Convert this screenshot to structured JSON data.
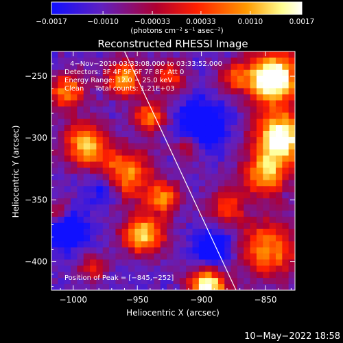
{
  "chart_data": {
    "type": "heatmap",
    "title": "Reconstructed RHESSI Image",
    "xlabel": "Heliocentric X (arcsec)",
    "ylabel": "Heliocentric Y (arcsec)",
    "xlim": [
      -1017,
      -827
    ],
    "ylim": [
      -423,
      -230
    ],
    "xticks": [
      -1000,
      -950,
      -900,
      -850
    ],
    "yticks": [
      -400,
      -350,
      -300,
      -250
    ],
    "xtick_labels": [
      "−1000",
      "−950",
      "−900",
      "−850"
    ],
    "ytick_labels": [
      "−400",
      "−350",
      "−300",
      "−250"
    ],
    "colorbar": {
      "min": -0.0017,
      "max": 0.0017,
      "ticks": [
        -0.0017,
        -0.001,
        -0.00033,
        0.00033,
        0.001,
        0.0017
      ],
      "tick_labels": [
        "−0.0017",
        "−0.0010",
        "−0.00033",
        "0.00033",
        "0.0010",
        "0.0017"
      ],
      "unit_label": "(photons cm⁻² s⁻¹ asec⁻²)",
      "colors": [
        "#1010ff",
        "#6020c0",
        "#b00030",
        "#ff2000",
        "#ff9a00",
        "#ffff90",
        "#ffffff"
      ]
    },
    "annotations": [
      "4−Nov−2010 03:33:08.000 to 03:33:52.000",
      "Detectors: 3F 4F 5F 6F 7F 8F, Att 0",
      "Energy Range: 12.0 − 25.0 keV",
      "Clean     Total counts: 1.21E+03"
    ],
    "peak_label": "Position of Peak = [−845,−252]",
    "peak_position": [
      -845,
      -252
    ],
    "limb_line": {
      "from": [
        -960,
        -230
      ],
      "to": [
        -873,
        -423
      ]
    },
    "grid_cols": 38,
    "grid_rows": 39
  },
  "footer": {
    "timestamp": "10−May−2022 18:58"
  }
}
